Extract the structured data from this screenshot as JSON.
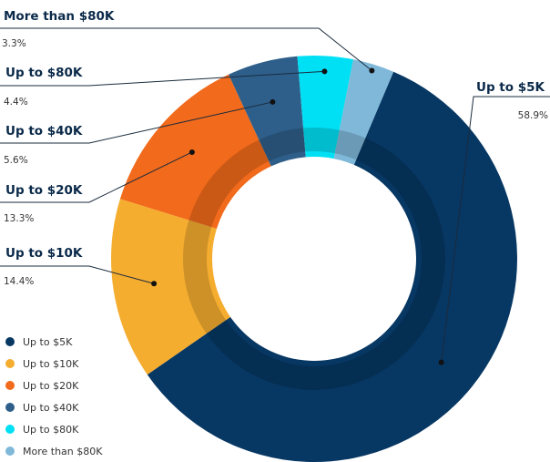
{
  "chart_data": {
    "type": "pie",
    "variant": "donut",
    "categories": [
      "Up to $5K",
      "Up to $10K",
      "Up to $20K",
      "Up to $40K",
      "Up to $80K",
      "More than $80K"
    ],
    "values": [
      58.9,
      14.4,
      13.3,
      5.6,
      4.4,
      3.3
    ],
    "value_labels": [
      "58.9%",
      "14.4%",
      "13.3%",
      "5.6%",
      "4.4%",
      "3.3%"
    ],
    "colors": [
      "#073763",
      "#f5ad30",
      "#f26a1b",
      "#2e5f8a",
      "#00e0f5",
      "#7fb8d8"
    ],
    "legend_position": "bottom-left",
    "title": ""
  }
}
